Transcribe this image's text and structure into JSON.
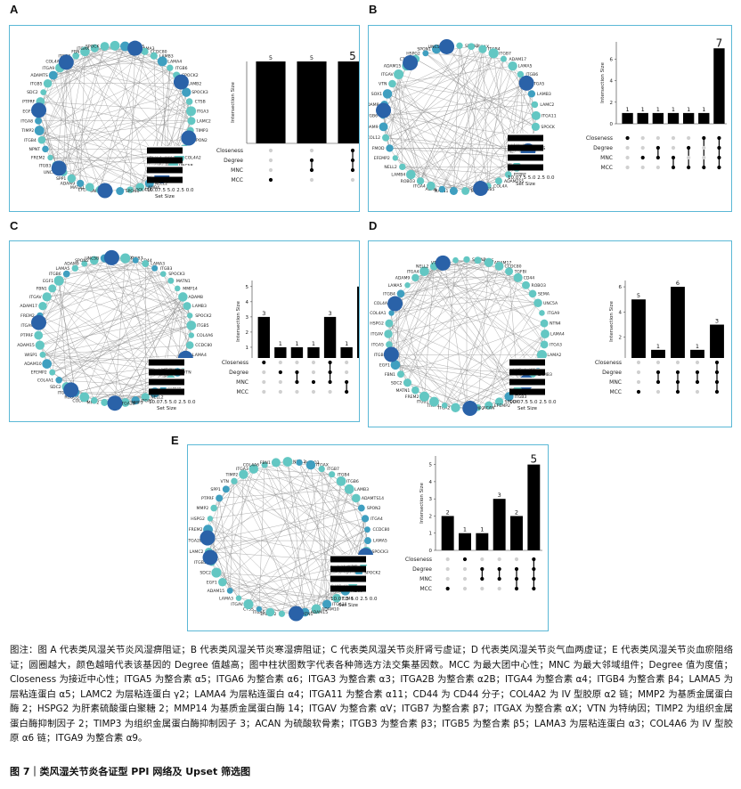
{
  "colors": {
    "panel_border": "#5bb8d6",
    "node_light": "#63c7c3",
    "node_mid": "#3f9fc0",
    "node_dark": "#2a62a8",
    "edge": "#8a8a8a",
    "bar": "#000000"
  },
  "sets": [
    "Closeness",
    "Degree",
    "MNC",
    "MCC"
  ],
  "set_size_axis_label": "Set Size",
  "set_size_ticks": "10.07.5 5.0 2.5 0.0",
  "y_axis_label": "Intersection Size",
  "panels": [
    {
      "label": "A",
      "nodes": [
        "ITGAV",
        "LAMA5",
        "LAMA3",
        "CCDC80",
        "LAMB3",
        "LAMA4",
        "ITGB6",
        "SPOCK2",
        "LAMB2",
        "SPOCK3",
        "CTSB",
        "ITGA3",
        "LAMC2",
        "TIMP3",
        "SPON2",
        "ADAM17",
        "COL4A2",
        "UNC5B",
        "ITGA2",
        "ADAM10",
        "NELL2",
        "LAMB4",
        "COL4A6",
        "SPON1",
        "UNC5B",
        "EFEMP2",
        "MATN1",
        "ADAM9",
        "SPP1",
        "UNC5D",
        "ITGB3",
        "FREM2",
        "NPNT",
        "ITGB4",
        "TIMP2",
        "ITGA8",
        "EGF1",
        "PTPRF",
        "SDC2",
        "ITGB5",
        "ADAMTS",
        "ITGA9",
        "COL4A1",
        "ITGB8",
        "FBN",
        "ITGAX",
        "SPOCK"
      ],
      "hubs": [
        [
          0.62,
          0.06
        ],
        [
          0.88,
          0.28
        ],
        [
          0.93,
          0.62
        ],
        [
          0.78,
          0.86
        ],
        [
          0.44,
          0.96
        ],
        [
          0.18,
          0.8
        ],
        [
          0.06,
          0.45
        ],
        [
          0.22,
          0.16
        ]
      ],
      "chart_data": {
        "type": "bar",
        "ylabel": "Intersection Size",
        "values": [
          5,
          5,
          5
        ],
        "ylim": [
          0,
          5
        ],
        "yticks": [],
        "membership": [
          [
            0,
            0,
            0,
            1
          ],
          [
            0,
            1,
            1,
            0
          ],
          [
            1,
            1,
            1,
            0
          ]
        ]
      }
    },
    {
      "label": "B",
      "nodes": [
        "SPON2",
        "ITGAX",
        "ITGB4",
        "ITGB7",
        "ADAM17",
        "LAMA5",
        "ITGB6",
        "ITGA5",
        "LAMB3",
        "LAMC2",
        "ITGA11",
        "SPOCK",
        "ADAM10",
        "CTSS",
        "CTSB",
        "TGFBI",
        "PTPRF",
        "ADAMTS5",
        "COL4A",
        "ITGB5",
        "MMP2",
        "MATN1",
        "ACAN",
        "ITGA4",
        "ROBO3",
        "LAMB4",
        "NELL2",
        "EFEMP2",
        "FMOD",
        "COL12",
        "ADAM9",
        "ITGB6",
        "ADAM8",
        "SOX1",
        "VTN",
        "ITGAV",
        "ADAM15",
        "CTSK",
        "HSPG2",
        "SPON1",
        "UNC5B"
      ],
      "hubs": [
        [
          0.18,
          0.12
        ],
        [
          0.05,
          0.45
        ],
        [
          0.42,
          0.03
        ],
        [
          0.62,
          0.92
        ],
        [
          0.86,
          0.3
        ],
        [
          0.9,
          0.7
        ]
      ],
      "chart_data": {
        "type": "bar",
        "ylabel": "Intersection Size",
        "values": [
          1,
          1,
          1,
          1,
          1,
          1,
          7
        ],
        "ylim": [
          0,
          7.6
        ],
        "yticks": [
          0,
          2,
          4,
          6
        ],
        "membership": [
          [
            1,
            0,
            0,
            0
          ],
          [
            0,
            0,
            1,
            0
          ],
          [
            0,
            1,
            1,
            0
          ],
          [
            0,
            0,
            1,
            1
          ],
          [
            0,
            1,
            0,
            1
          ],
          [
            1,
            0,
            0,
            1
          ],
          [
            1,
            1,
            1,
            1
          ]
        ]
      }
    },
    {
      "label": "C",
      "nodes": [
        "ITGAX",
        "ITGB7",
        "CD44",
        "LAMA3",
        "ITGB3",
        "SPOCK3",
        "MATN1",
        "MMP14",
        "ADAM8",
        "LAMB3",
        "SPOCK2",
        "ITGB5",
        "COL4A6",
        "CCDC80",
        "LAMA4",
        "ITGA4",
        "VTN",
        "SERPINB",
        "ITGA3",
        "HSPG2",
        "NELL2",
        "ITGA5",
        "TIMP3",
        "ITGA2B",
        "MMP2",
        "COL4A2",
        "ROBO3",
        "ITGB4",
        "SDC2",
        "COL4A1",
        "EFEMP2",
        "ADAM10",
        "WISP1",
        "ADAM15",
        "PTPRF",
        "ITGA9",
        "FREM2",
        "ADAM17",
        "ITGAV",
        "FBN1",
        "EGF1",
        "ITGB6",
        "LAMA5",
        "ADAM9",
        "SPON2",
        "UNC5B"
      ],
      "hubs": [
        [
          0.48,
          0.03
        ],
        [
          0.04,
          0.45
        ],
        [
          0.22,
          0.9
        ],
        [
          0.5,
          0.97
        ],
        [
          0.86,
          0.65
        ]
      ],
      "chart_data": {
        "type": "bar",
        "ylabel": "Intersection Size",
        "values": [
          3,
          1,
          1,
          1,
          3,
          1,
          5
        ],
        "ylim": [
          0,
          5.4
        ],
        "yticks": [
          0,
          1,
          2,
          3,
          4,
          5
        ],
        "membership": [
          [
            1,
            0,
            0,
            0
          ],
          [
            0,
            1,
            0,
            0
          ],
          [
            0,
            1,
            1,
            0
          ],
          [
            0,
            0,
            1,
            0
          ],
          [
            1,
            1,
            1,
            0
          ],
          [
            0,
            0,
            1,
            1
          ],
          [
            1,
            1,
            1,
            1
          ]
        ]
      }
    },
    {
      "label": "D",
      "nodes": [
        "SPON2",
        "CTSS",
        "ADAM17",
        "CCDC80",
        "TGFBI",
        "CD44",
        "ROBO3",
        "SEMA",
        "UNC5A",
        "ITGA9",
        "NTN4",
        "LAMA4",
        "ITGA3",
        "LAMA2",
        "ITGB7",
        "LAMB3",
        "ITGAX",
        "ADAM10",
        "ITGB3",
        "SPOCK",
        "EFEMP2",
        "ACAN",
        "MMP2",
        "ITGA2",
        "TIMP3",
        "ITGB1",
        "FREM2",
        "MATN1",
        "SDC2",
        "FBN1",
        "EGF1",
        "ITGB8",
        "ITGA5",
        "ITGAV",
        "HSPG2",
        "COL4A1",
        "COL4A2",
        "ITGB4",
        "LAMA5",
        "ADAM9",
        "ITGA4",
        "NELL2",
        "VTN",
        "SPP1"
      ],
      "hubs": [
        [
          0.08,
          0.62
        ],
        [
          0.52,
          0.97
        ],
        [
          0.92,
          0.86
        ],
        [
          0.05,
          0.3
        ],
        [
          0.36,
          0.06
        ]
      ],
      "chart_data": {
        "type": "bar",
        "ylabel": "Intersection Size",
        "values": [
          5,
          1,
          6,
          1,
          3
        ],
        "ylim": [
          0,
          6.5
        ],
        "yticks": [
          0,
          2,
          4,
          6
        ],
        "membership": [
          [
            0,
            0,
            0,
            1
          ],
          [
            0,
            1,
            1,
            0
          ],
          [
            0,
            1,
            1,
            1
          ],
          [
            0,
            1,
            1,
            0
          ],
          [
            1,
            1,
            1,
            1
          ]
        ]
      }
    },
    {
      "label": "E",
      "nodes": [
        "NELL2",
        "ROBO3",
        "ITGAX",
        "ITGB7",
        "ITGB4",
        "ITGB6",
        "LAMB3",
        "ADAMTS14",
        "SPON2",
        "ITGA4",
        "CCDC80",
        "LAMA5",
        "SPOCK3",
        "ADAM17",
        "SPOCK2",
        "ITGB3",
        "ACAN",
        "CD44",
        "ITGA11",
        "ADAM10",
        "ADAM15",
        "MATN1",
        "EFEMP2",
        "ITGA5",
        "CTSS",
        "ITGAV",
        "LAMA3",
        "ADAM15",
        "EGF1",
        "SDC2",
        "ITGB5",
        "LAMC2",
        "ITGA2B",
        "FREM2",
        "HSPG2",
        "MMP2",
        "PTPRF",
        "SPP1",
        "VTN",
        "TIMP2",
        "ITGA3",
        "COL4A6",
        "FBN1"
      ],
      "hubs": [
        [
          0.06,
          0.5
        ],
        [
          0.05,
          0.62
        ],
        [
          0.55,
          0.97
        ],
        [
          0.92,
          0.6
        ]
      ],
      "chart_data": {
        "type": "bar",
        "ylabel": "Intersection Size",
        "values": [
          2,
          1,
          1,
          3,
          2,
          5
        ],
        "ylim": [
          0,
          5.5
        ],
        "yticks": [
          0,
          1,
          2,
          3,
          4,
          5
        ],
        "membership": [
          [
            0,
            0,
            0,
            1
          ],
          [
            1,
            0,
            0,
            0
          ],
          [
            0,
            1,
            1,
            0
          ],
          [
            0,
            1,
            1,
            0
          ],
          [
            0,
            1,
            1,
            1
          ],
          [
            1,
            1,
            1,
            1
          ]
        ]
      }
    }
  ],
  "caption": "图注：图 A 代表类风湿关节炎风湿痹阻证；B 代表类风湿关节炎寒湿痹阻证；C 代表类风湿关节炎肝肾亏虚证；D 代表类风湿关节炎气血两虚证；E 代表类风湿关节炎血瘀阻络证；圆圈越大，颜色越暗代表该基因的 Degree 值越高；图中柱状图数字代表各种筛选方法交集基因数。MCC 为最大团中心性；MNC 为最大邻域组件；Degree 值为度值；Closeness 为接近中心性；ITGA5 为整合素 α5；ITGA6 为整合素 α6；ITGA3 为整合素 α3；ITGA2B 为整合素 α2B；ITGA4 为整合素 α4；ITGB4 为整合素 β4；LAMA5 为层粘连蛋白 α5；LAMC2 为层粘连蛋白 γ2；LAMA4 为层粘连蛋白 α4；ITGA11 为整合素 α11；CD44 为 CD44 分子；COL4A2 为 IV 型胶原 α2 链；MMP2 为基质金属蛋白酶 2；HSPG2 为肝素硫酸蛋白聚糖 2；MMP14 为基质金属蛋白酶 14；ITGAV 为整合素 αV；ITGB7 为整合素 β7；ITGAX 为整合素 αX；VTN 为特纳因；TIMP2 为组织金属蛋白酶抑制因子 2；TIMP3 为组织金属蛋白酶抑制因子 3；ACAN 为硫酸软骨素；ITGB3 为整合素 β3；ITGB5 为整合素 β5；LAMA3 为层粘连蛋白 α3；COL4A6 为 IV 型胶原 α6 链；ITGA9 为整合素 α9。",
  "figure_title": "图 7｜类风湿关节炎各证型 PPI 网络及 Upset 筛选图"
}
